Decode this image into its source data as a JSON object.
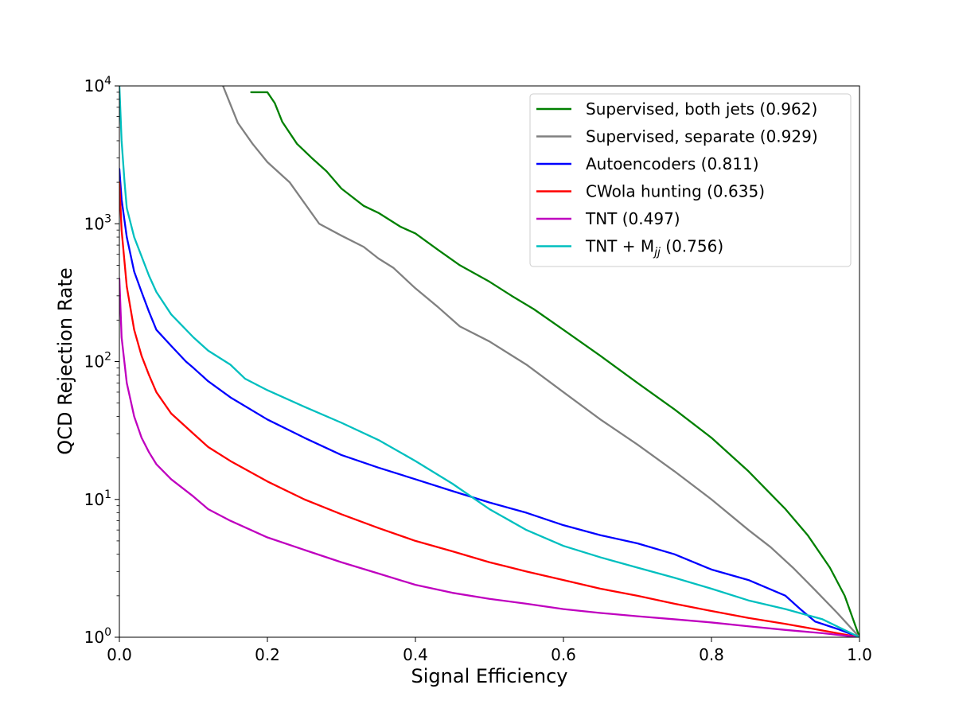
{
  "chart_data": {
    "type": "line",
    "title": "",
    "xlabel": "Signal Efficiency",
    "ylabel": "QCD Rejection Rate",
    "xlim": [
      0,
      1
    ],
    "ylim": [
      1,
      10000
    ],
    "yscale": "log",
    "grid": false,
    "legend_location": "top-right",
    "x_ticks": [
      {
        "value": 0.0,
        "label": "0.0"
      },
      {
        "value": 0.2,
        "label": "0.2"
      },
      {
        "value": 0.4,
        "label": "0.4"
      },
      {
        "value": 0.6,
        "label": "0.6"
      },
      {
        "value": 0.8,
        "label": "0.8"
      },
      {
        "value": 1.0,
        "label": "1.0"
      }
    ],
    "y_ticks": [
      {
        "value": 1,
        "base": "10",
        "exp": "0"
      },
      {
        "value": 10,
        "base": "10",
        "exp": "1"
      },
      {
        "value": 100,
        "base": "10",
        "exp": "2"
      },
      {
        "value": 1000,
        "base": "10",
        "exp": "3"
      },
      {
        "value": 10000,
        "base": "10",
        "exp": "4"
      }
    ],
    "series": [
      {
        "name": "Supervised, both jets (0.962)",
        "label_main": "Supervised, both jets (0.962)",
        "color": "#008000",
        "x": [
          0.178,
          0.2,
          0.21,
          0.22,
          0.24,
          0.26,
          0.28,
          0.3,
          0.33,
          0.35,
          0.38,
          0.4,
          0.43,
          0.46,
          0.5,
          0.53,
          0.56,
          0.6,
          0.65,
          0.7,
          0.75,
          0.8,
          0.85,
          0.9,
          0.93,
          0.96,
          0.98,
          1.0
        ],
        "y": [
          9000,
          9000,
          7500,
          5500,
          3800,
          3000,
          2400,
          1800,
          1350,
          1200,
          950,
          850,
          650,
          500,
          380,
          300,
          240,
          170,
          110,
          70,
          45,
          28,
          16,
          8.5,
          5.5,
          3.2,
          2.0,
          1.0
        ]
      },
      {
        "name": "Supervised, separate (0.929)",
        "label_main": "Supervised, separate (0.929)",
        "color": "#808080",
        "x": [
          0.14,
          0.16,
          0.18,
          0.2,
          0.23,
          0.27,
          0.3,
          0.33,
          0.35,
          0.37,
          0.4,
          0.43,
          0.46,
          0.5,
          0.55,
          0.6,
          0.65,
          0.7,
          0.75,
          0.8,
          0.85,
          0.88,
          0.91,
          0.94,
          0.97,
          1.0
        ],
        "y": [
          10000,
          5400,
          3800,
          2800,
          2000,
          1000,
          820,
          680,
          560,
          480,
          340,
          250,
          180,
          140,
          95,
          60,
          38,
          25,
          16,
          10,
          6.0,
          4.5,
          3.2,
          2.2,
          1.5,
          1.0
        ]
      },
      {
        "name": "Autoencoders (0.811)",
        "label_main": "Autoencoders (0.811)",
        "color": "#0000ff",
        "x": [
          0.0,
          0.003,
          0.01,
          0.02,
          0.03,
          0.04,
          0.05,
          0.07,
          0.09,
          0.1,
          0.12,
          0.15,
          0.2,
          0.25,
          0.3,
          0.35,
          0.4,
          0.45,
          0.5,
          0.55,
          0.6,
          0.65,
          0.7,
          0.75,
          0.8,
          0.85,
          0.9,
          0.92,
          0.94,
          0.97,
          1.0
        ],
        "y": [
          2500,
          1500,
          800,
          450,
          320,
          230,
          170,
          130,
          100,
          90,
          72,
          55,
          38,
          28,
          21,
          17,
          14,
          11.5,
          9.5,
          8.0,
          6.5,
          5.5,
          4.8,
          4.0,
          3.1,
          2.6,
          2.0,
          1.6,
          1.3,
          1.15,
          1.0
        ]
      },
      {
        "name": "CWola hunting (0.635)",
        "label_main": "CWola hunting (0.635)",
        "color": "#ff0000",
        "x": [
          0.0,
          0.003,
          0.01,
          0.02,
          0.03,
          0.04,
          0.05,
          0.07,
          0.1,
          0.12,
          0.15,
          0.2,
          0.25,
          0.3,
          0.35,
          0.4,
          0.45,
          0.5,
          0.55,
          0.6,
          0.65,
          0.7,
          0.75,
          0.8,
          0.85,
          0.9,
          0.95,
          1.0
        ],
        "y": [
          2000,
          900,
          350,
          170,
          110,
          80,
          60,
          42,
          30,
          24,
          19,
          13.5,
          10,
          7.8,
          6.2,
          5.0,
          4.2,
          3.5,
          3.0,
          2.6,
          2.25,
          2.0,
          1.75,
          1.55,
          1.38,
          1.25,
          1.12,
          1.0
        ]
      },
      {
        "name": "TNT (0.497)",
        "label_main": "TNT (0.497)",
        "color": "#bf00bf",
        "x": [
          0.0,
          0.003,
          0.01,
          0.02,
          0.03,
          0.04,
          0.05,
          0.07,
          0.1,
          0.12,
          0.15,
          0.2,
          0.25,
          0.3,
          0.35,
          0.4,
          0.45,
          0.5,
          0.55,
          0.6,
          0.65,
          0.7,
          0.75,
          0.8,
          0.85,
          0.9,
          0.95,
          1.0
        ],
        "y": [
          400,
          150,
          70,
          40,
          28,
          22,
          18,
          14,
          10.5,
          8.5,
          7.0,
          5.3,
          4.3,
          3.5,
          2.9,
          2.4,
          2.1,
          1.9,
          1.75,
          1.6,
          1.5,
          1.42,
          1.35,
          1.28,
          1.2,
          1.13,
          1.07,
          1.0
        ]
      },
      {
        "name": "TNT + M_jj (0.756)",
        "label_main": "TNT + M",
        "label_sub": "jj",
        "label_tail": " (0.756)",
        "color": "#00bfbf",
        "x": [
          0.0,
          0.003,
          0.007,
          0.01,
          0.02,
          0.03,
          0.04,
          0.05,
          0.07,
          0.1,
          0.12,
          0.15,
          0.17,
          0.2,
          0.25,
          0.3,
          0.35,
          0.4,
          0.45,
          0.5,
          0.55,
          0.6,
          0.65,
          0.7,
          0.75,
          0.8,
          0.85,
          0.9,
          0.95,
          1.0
        ],
        "y": [
          10000,
          4000,
          2000,
          1300,
          800,
          580,
          420,
          320,
          220,
          150,
          120,
          95,
          75,
          62,
          47,
          36,
          27,
          19,
          13,
          8.5,
          6.0,
          4.6,
          3.8,
          3.2,
          2.7,
          2.25,
          1.85,
          1.6,
          1.35,
          1.0
        ]
      }
    ]
  }
}
